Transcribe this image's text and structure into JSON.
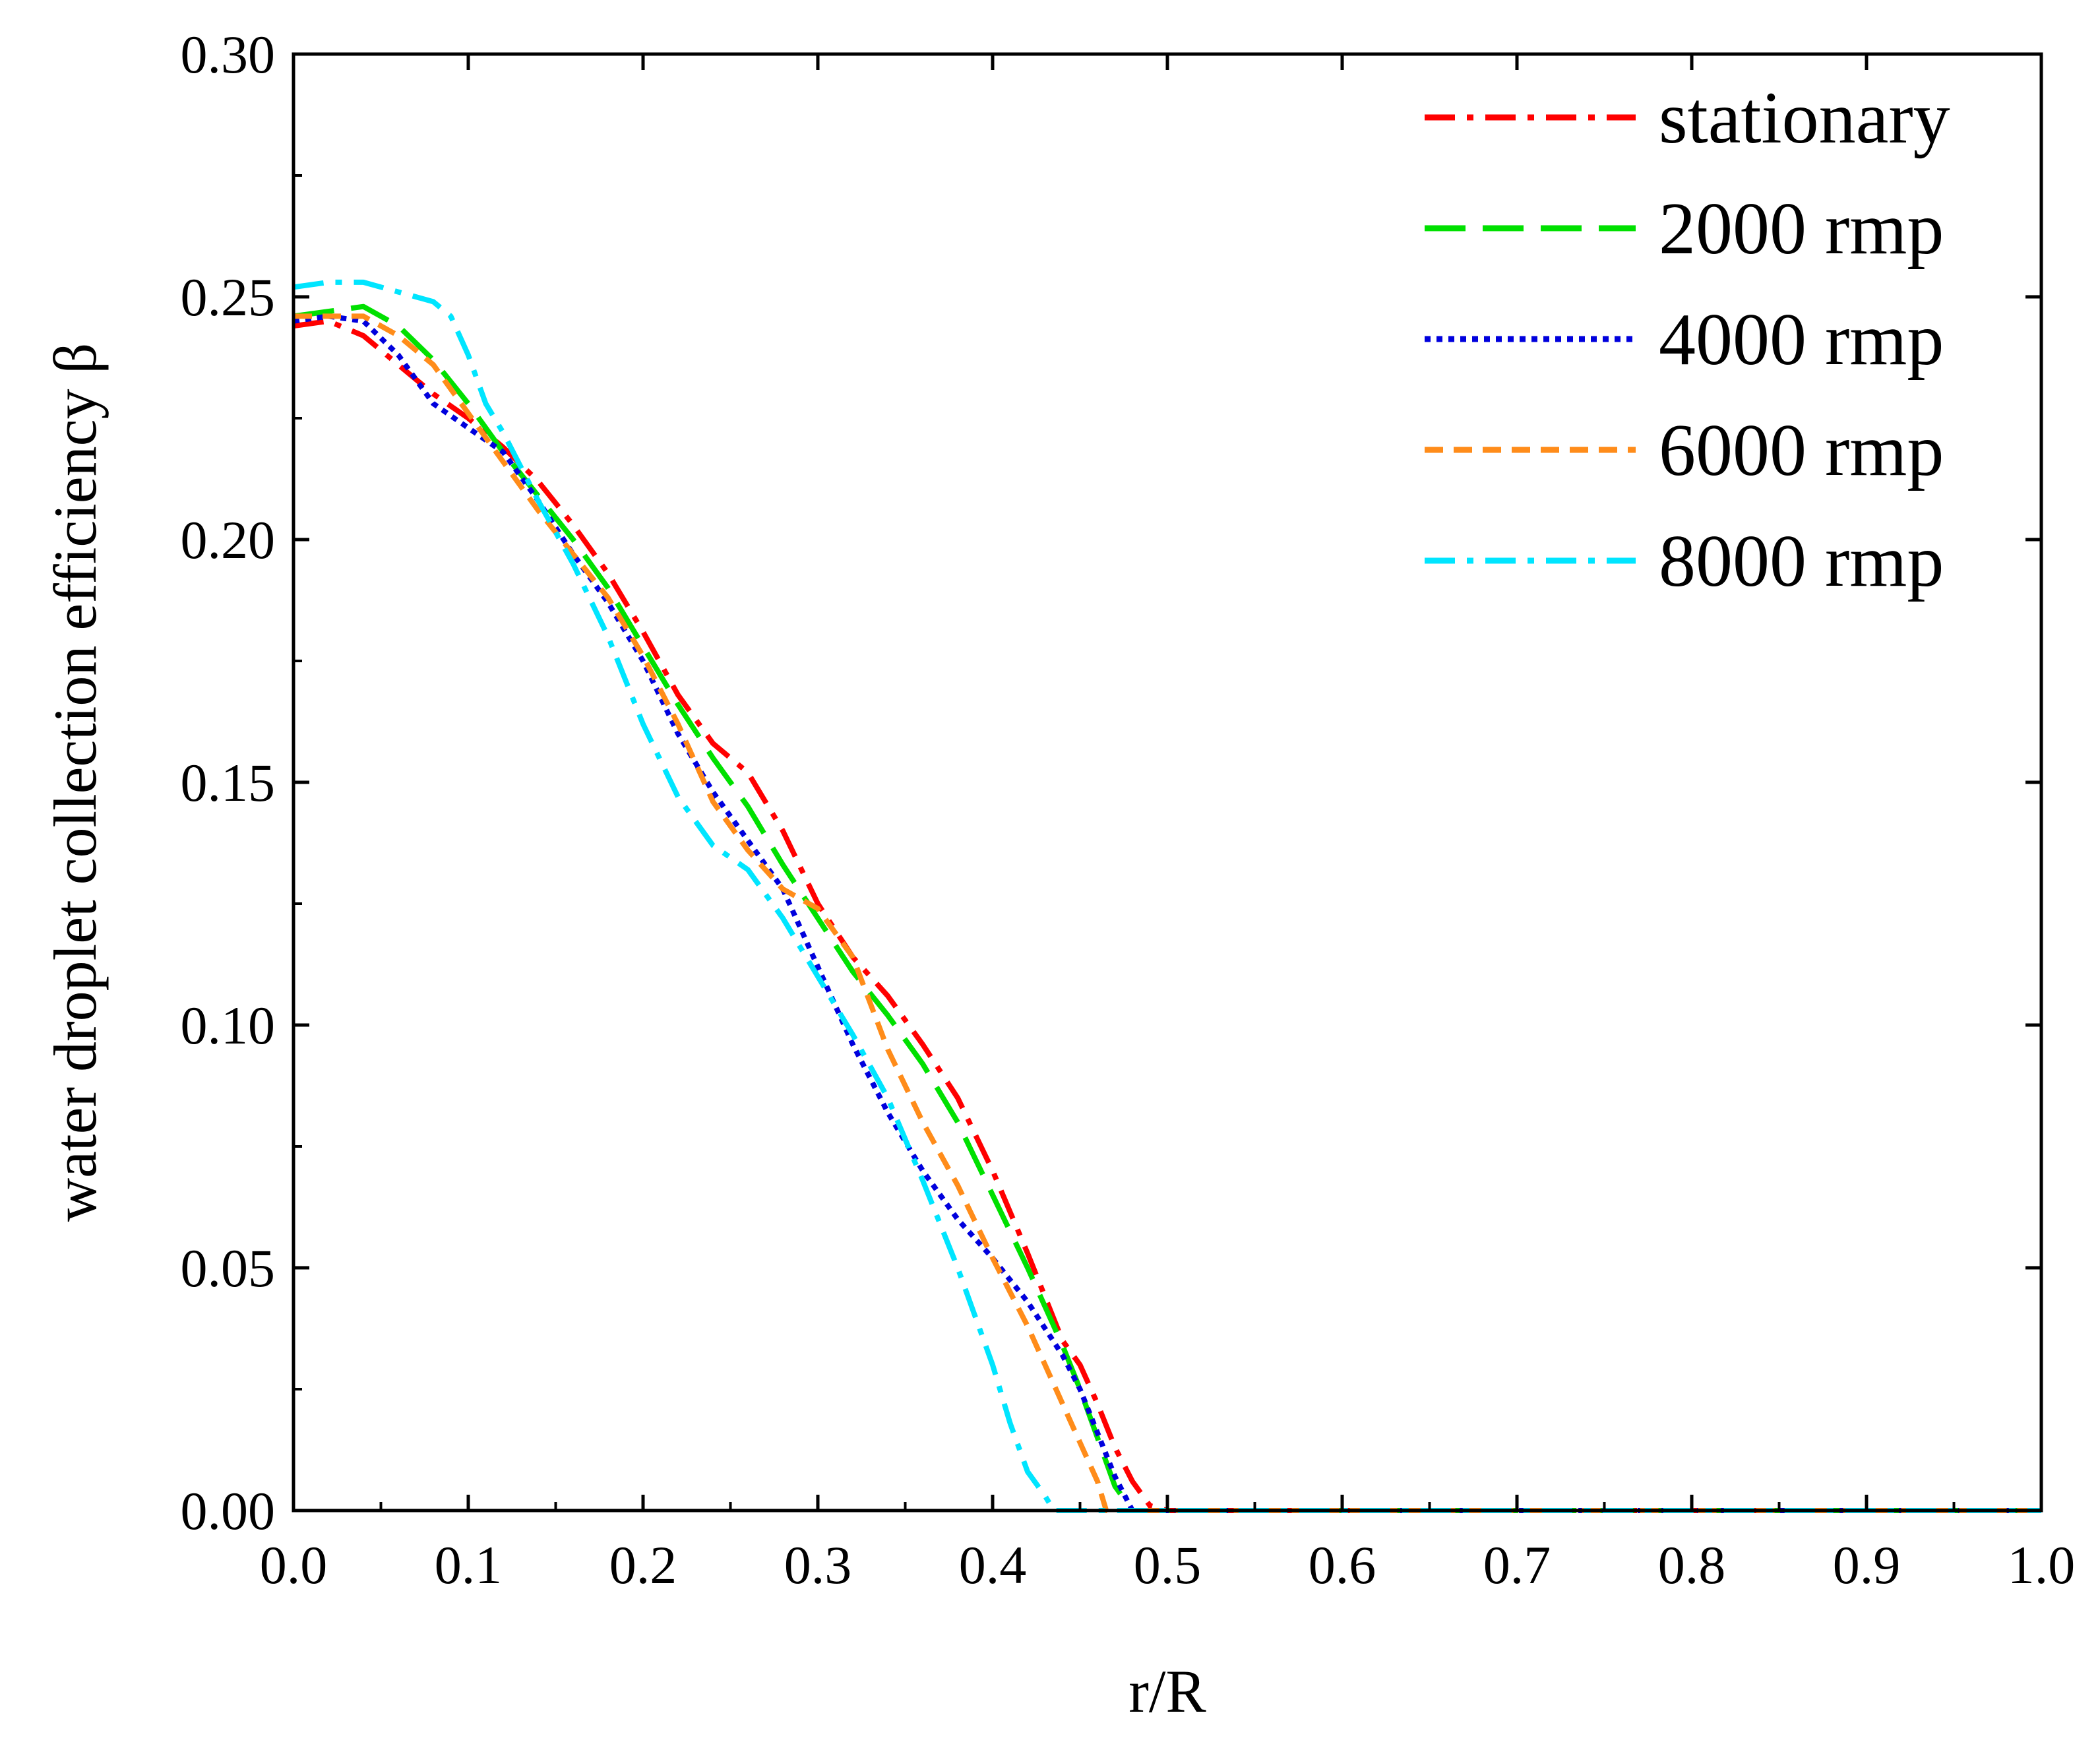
{
  "chart_data": {
    "type": "line",
    "title": "",
    "xlabel": "r/R",
    "ylabel": "water droplet collection efficiency  β",
    "xlim": [
      0.0,
      1.0
    ],
    "ylim": [
      0.0,
      0.3
    ],
    "grid": false,
    "legend_position": "top-right",
    "x_ticks": [
      {
        "value": 0.0,
        "label": "0.0"
      },
      {
        "value": 0.1,
        "label": "0.1"
      },
      {
        "value": 0.2,
        "label": "0.2"
      },
      {
        "value": 0.3,
        "label": "0.3"
      },
      {
        "value": 0.4,
        "label": "0.4"
      },
      {
        "value": 0.5,
        "label": "0.5"
      },
      {
        "value": 0.6,
        "label": "0.6"
      },
      {
        "value": 0.7,
        "label": "0.7"
      },
      {
        "value": 0.8,
        "label": "0.8"
      },
      {
        "value": 0.9,
        "label": "0.9"
      },
      {
        "value": 1.0,
        "label": "1.0"
      }
    ],
    "y_ticks": [
      {
        "value": 0.0,
        "label": "0.00"
      },
      {
        "value": 0.05,
        "label": "0.05"
      },
      {
        "value": 0.1,
        "label": "0.10"
      },
      {
        "value": 0.15,
        "label": "0.15"
      },
      {
        "value": 0.2,
        "label": "0.20"
      },
      {
        "value": 0.25,
        "label": "0.25"
      },
      {
        "value": 0.3,
        "label": "0.30"
      }
    ],
    "series": [
      {
        "name": "stationary",
        "color": "#ff0000",
        "dash": "dashdot",
        "x": [
          0.0,
          0.02,
          0.04,
          0.06,
          0.08,
          0.1,
          0.12,
          0.14,
          0.16,
          0.18,
          0.2,
          0.22,
          0.24,
          0.26,
          0.28,
          0.3,
          0.32,
          0.34,
          0.36,
          0.38,
          0.4,
          0.42,
          0.44,
          0.45,
          0.46,
          0.47,
          0.48,
          0.49,
          0.5,
          0.6,
          0.7,
          0.8,
          0.9,
          1.0
        ],
        "y": [
          0.244,
          0.245,
          0.242,
          0.236,
          0.23,
          0.225,
          0.219,
          0.212,
          0.203,
          0.193,
          0.181,
          0.168,
          0.158,
          0.152,
          0.14,
          0.125,
          0.114,
          0.106,
          0.096,
          0.085,
          0.07,
          0.053,
          0.035,
          0.03,
          0.022,
          0.013,
          0.006,
          0.001,
          0.0,
          0.0,
          0.0,
          0.0,
          0.0,
          0.0
        ]
      },
      {
        "name": "2000 rmp",
        "color": "#00e000",
        "dash": "longdash",
        "x": [
          0.0,
          0.02,
          0.04,
          0.06,
          0.08,
          0.1,
          0.12,
          0.14,
          0.16,
          0.18,
          0.2,
          0.22,
          0.24,
          0.26,
          0.28,
          0.3,
          0.32,
          0.34,
          0.36,
          0.38,
          0.4,
          0.42,
          0.44,
          0.45,
          0.46,
          0.47,
          0.48,
          0.5,
          0.6,
          0.7,
          0.8,
          0.9,
          1.0
        ],
        "y": [
          0.246,
          0.247,
          0.248,
          0.244,
          0.237,
          0.228,
          0.218,
          0.209,
          0.2,
          0.19,
          0.178,
          0.166,
          0.155,
          0.145,
          0.133,
          0.122,
          0.111,
          0.102,
          0.092,
          0.08,
          0.065,
          0.05,
          0.034,
          0.025,
          0.015,
          0.005,
          0.0,
          0.0,
          0.0,
          0.0,
          0.0,
          0.0,
          0.0
        ]
      },
      {
        "name": "4000 rmp",
        "color": "#0000dd",
        "dash": "dot",
        "x": [
          0.0,
          0.02,
          0.04,
          0.06,
          0.08,
          0.1,
          0.12,
          0.14,
          0.16,
          0.18,
          0.2,
          0.22,
          0.24,
          0.26,
          0.28,
          0.3,
          0.32,
          0.34,
          0.36,
          0.38,
          0.4,
          0.42,
          0.44,
          0.45,
          0.46,
          0.47,
          0.48,
          0.5,
          0.6,
          0.7,
          0.8,
          0.9,
          1.0
        ],
        "y": [
          0.245,
          0.246,
          0.245,
          0.238,
          0.228,
          0.223,
          0.218,
          0.208,
          0.197,
          0.187,
          0.175,
          0.16,
          0.148,
          0.138,
          0.128,
          0.112,
          0.096,
          0.082,
          0.07,
          0.06,
          0.052,
          0.043,
          0.032,
          0.025,
          0.016,
          0.007,
          0.0,
          0.0,
          0.0,
          0.0,
          0.0,
          0.0,
          0.0
        ]
      },
      {
        "name": "6000 rmp",
        "color": "#ff8c1a",
        "dash": "shortdash",
        "x": [
          0.0,
          0.02,
          0.04,
          0.06,
          0.08,
          0.1,
          0.12,
          0.14,
          0.16,
          0.18,
          0.2,
          0.22,
          0.24,
          0.26,
          0.28,
          0.3,
          0.32,
          0.34,
          0.36,
          0.38,
          0.4,
          0.42,
          0.44,
          0.45,
          0.46,
          0.465,
          0.5,
          0.6,
          0.7,
          0.8,
          0.9,
          1.0
        ],
        "y": [
          0.246,
          0.246,
          0.246,
          0.242,
          0.236,
          0.226,
          0.216,
          0.206,
          0.197,
          0.188,
          0.176,
          0.162,
          0.146,
          0.136,
          0.128,
          0.124,
          0.114,
          0.095,
          0.08,
          0.067,
          0.052,
          0.038,
          0.022,
          0.014,
          0.006,
          0.0,
          0.0,
          0.0,
          0.0,
          0.0,
          0.0,
          0.0
        ]
      },
      {
        "name": "8000 rmp",
        "color": "#00e5ff",
        "dash": "dashdot",
        "x": [
          0.0,
          0.02,
          0.04,
          0.06,
          0.08,
          0.09,
          0.1,
          0.11,
          0.12,
          0.14,
          0.16,
          0.18,
          0.2,
          0.22,
          0.24,
          0.26,
          0.28,
          0.3,
          0.32,
          0.34,
          0.36,
          0.38,
          0.4,
          0.41,
          0.42,
          0.43,
          0.435,
          0.5,
          0.6,
          0.7,
          0.8,
          0.9,
          1.0
        ],
        "y": [
          0.252,
          0.253,
          0.253,
          0.251,
          0.249,
          0.246,
          0.238,
          0.228,
          0.222,
          0.208,
          0.195,
          0.18,
          0.162,
          0.147,
          0.137,
          0.132,
          0.122,
          0.11,
          0.098,
          0.085,
          0.068,
          0.05,
          0.03,
          0.018,
          0.008,
          0.003,
          0.0,
          0.0,
          0.0,
          0.0,
          0.0,
          0.0,
          0.0
        ]
      }
    ]
  }
}
